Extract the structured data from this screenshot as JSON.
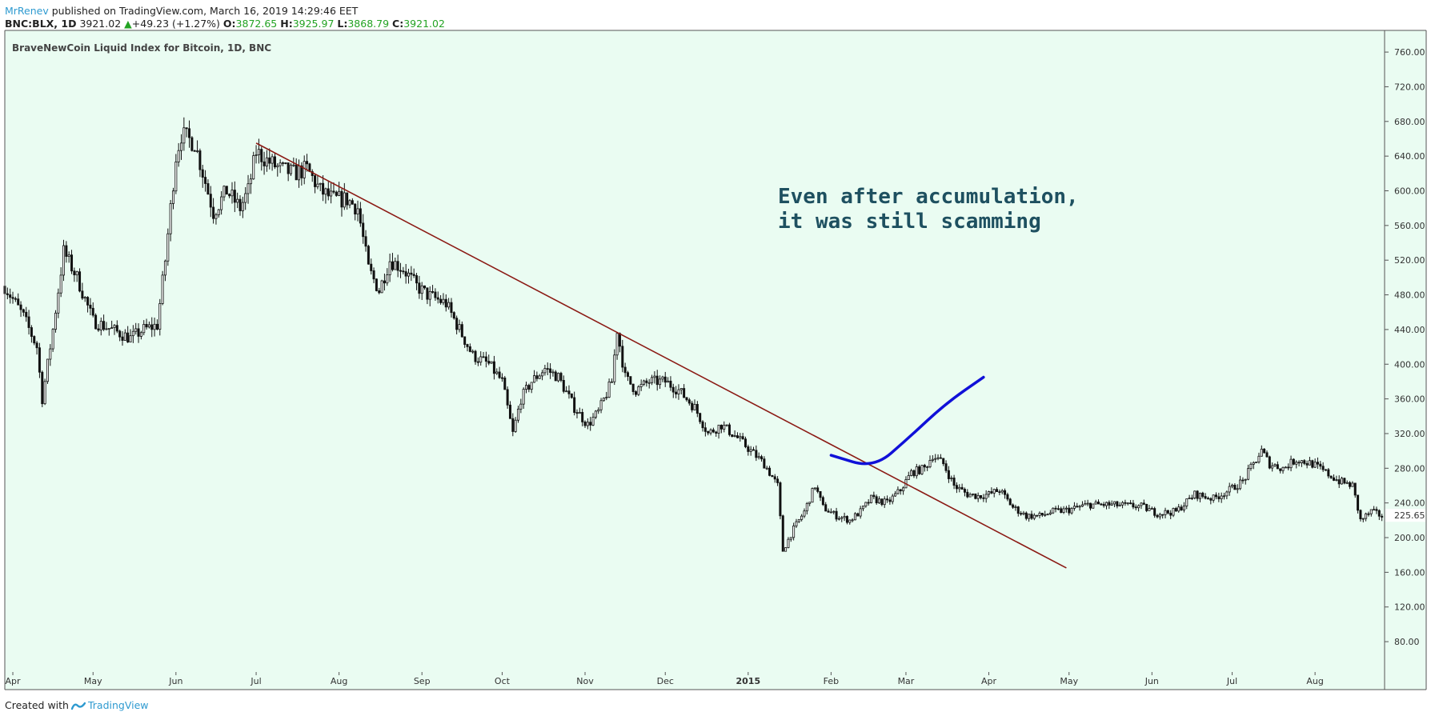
{
  "header": {
    "author": "MrRenev",
    "published_text": "published on TradingView.com, March 16, 2019 14:29:46 EET",
    "symbol": "BNC:BLX, 1D",
    "last": "3921.02",
    "change_arrow": "▲",
    "change": "+49.23 (+1.27%)",
    "open_label": "O:",
    "open": "3872.65",
    "high_label": "H:",
    "high": "3925.97",
    "low_label": "L:",
    "low": "3868.79",
    "close_label": "C:",
    "close": "3921.02"
  },
  "footer": {
    "created_with": "Created with",
    "brand": "TradingView"
  },
  "colors": {
    "background": "#eafcf2",
    "trendline": "#8b1a14",
    "annotation_curve": "#1010d8",
    "annotation_text": "#1e5060",
    "candle": "#111111",
    "price_label_bg": "#ffffff"
  },
  "chart_data": {
    "type": "candlestick",
    "title": "BraveNewCoin Liquid Index for Bitcoin, 1D, BNC",
    "x_tick_labels": [
      "Apr",
      "May",
      "Jun",
      "Jul",
      "Aug",
      "Sep",
      "Oct",
      "Nov",
      "Dec",
      "2015",
      "Feb",
      "Mar",
      "Apr",
      "May",
      "Jun",
      "Jul",
      "Aug"
    ],
    "x_tick_dates": [
      "2014-04-01",
      "2014-05-01",
      "2014-06-01",
      "2014-07-01",
      "2014-08-01",
      "2014-09-01",
      "2014-10-01",
      "2014-11-01",
      "2014-12-01",
      "2015-01-01",
      "2015-02-01",
      "2015-03-01",
      "2015-04-01",
      "2015-05-01",
      "2015-06-01",
      "2015-07-01",
      "2015-08-01"
    ],
    "y_ticks": [
      "80.00",
      "120.00",
      "160.00",
      "200.00",
      "240.00",
      "280.00",
      "320.00",
      "360.00",
      "400.00",
      "440.00",
      "480.00",
      "520.00",
      "560.00",
      "600.00",
      "640.00",
      "680.00",
      "720.00",
      "760.00"
    ],
    "ylim": [
      45,
      785
    ],
    "xlim": [
      "2014-03-29",
      "2015-08-27"
    ],
    "last_price_label": "225.65",
    "price_path": [
      [
        "2014-03-29",
        490
      ],
      [
        "2014-04-05",
        455
      ],
      [
        "2014-04-10",
        420
      ],
      [
        "2014-04-12",
        360
      ],
      [
        "2014-04-16",
        440
      ],
      [
        "2014-04-20",
        530
      ],
      [
        "2014-04-25",
        500
      ],
      [
        "2014-05-01",
        450
      ],
      [
        "2014-05-08",
        440
      ],
      [
        "2014-05-15",
        430
      ],
      [
        "2014-05-20",
        440
      ],
      [
        "2014-05-25",
        445
      ],
      [
        "2014-05-28",
        520
      ],
      [
        "2014-06-01",
        640
      ],
      [
        "2014-06-03",
        665
      ],
      [
        "2014-06-08",
        655
      ],
      [
        "2014-06-12",
        610
      ],
      [
        "2014-06-15",
        575
      ],
      [
        "2014-06-20",
        600
      ],
      [
        "2014-06-25",
        580
      ],
      [
        "2014-06-28",
        600
      ],
      [
        "2014-07-01",
        645
      ],
      [
        "2014-07-05",
        635
      ],
      [
        "2014-07-10",
        625
      ],
      [
        "2014-07-15",
        620
      ],
      [
        "2014-07-20",
        625
      ],
      [
        "2014-07-25",
        600
      ],
      [
        "2014-07-30",
        590
      ],
      [
        "2014-08-04",
        590
      ],
      [
        "2014-08-08",
        580
      ],
      [
        "2014-08-12",
        510
      ],
      [
        "2014-08-16",
        485
      ],
      [
        "2014-08-20",
        520
      ],
      [
        "2014-08-25",
        510
      ],
      [
        "2014-08-30",
        490
      ],
      [
        "2014-09-03",
        480
      ],
      [
        "2014-09-10",
        470
      ],
      [
        "2014-09-15",
        440
      ],
      [
        "2014-09-20",
        410
      ],
      [
        "2014-09-26",
        400
      ],
      [
        "2014-10-01",
        380
      ],
      [
        "2014-10-05",
        320
      ],
      [
        "2014-10-08",
        360
      ],
      [
        "2014-10-12",
        380
      ],
      [
        "2014-10-17",
        395
      ],
      [
        "2014-10-22",
        385
      ],
      [
        "2014-10-28",
        350
      ],
      [
        "2014-11-02",
        330
      ],
      [
        "2014-11-06",
        345
      ],
      [
        "2014-11-11",
        380
      ],
      [
        "2014-11-13",
        440
      ],
      [
        "2014-11-16",
        385
      ],
      [
        "2014-11-20",
        370
      ],
      [
        "2014-11-25",
        380
      ],
      [
        "2014-12-01",
        380
      ],
      [
        "2014-12-06",
        370
      ],
      [
        "2014-12-12",
        350
      ],
      [
        "2014-12-17",
        320
      ],
      [
        "2014-12-22",
        330
      ],
      [
        "2014-12-28",
        315
      ],
      [
        "2015-01-02",
        300
      ],
      [
        "2015-01-07",
        285
      ],
      [
        "2015-01-12",
        260
      ],
      [
        "2015-01-14",
        185
      ],
      [
        "2015-01-18",
        210
      ],
      [
        "2015-01-22",
        230
      ],
      [
        "2015-01-26",
        260
      ],
      [
        "2015-01-29",
        235
      ],
      [
        "2015-02-03",
        225
      ],
      [
        "2015-02-08",
        220
      ],
      [
        "2015-02-12",
        230
      ],
      [
        "2015-02-16",
        245
      ],
      [
        "2015-02-22",
        240
      ],
      [
        "2015-02-27",
        255
      ],
      [
        "2015-03-03",
        275
      ],
      [
        "2015-03-08",
        280
      ],
      [
        "2015-03-11",
        295
      ],
      [
        "2015-03-15",
        285
      ],
      [
        "2015-03-19",
        260
      ],
      [
        "2015-03-24",
        250
      ],
      [
        "2015-03-28",
        248
      ],
      [
        "2015-04-01",
        250
      ],
      [
        "2015-04-05",
        255
      ],
      [
        "2015-04-10",
        235
      ],
      [
        "2015-04-15",
        225
      ],
      [
        "2015-04-20",
        225
      ],
      [
        "2015-04-25",
        230
      ],
      [
        "2015-05-01",
        232
      ],
      [
        "2015-05-08",
        238
      ],
      [
        "2015-05-15",
        238
      ],
      [
        "2015-05-22",
        237
      ],
      [
        "2015-05-28",
        236
      ],
      [
        "2015-06-03",
        228
      ],
      [
        "2015-06-10",
        230
      ],
      [
        "2015-06-17",
        250
      ],
      [
        "2015-06-24",
        245
      ],
      [
        "2015-06-30",
        255
      ],
      [
        "2015-07-05",
        265
      ],
      [
        "2015-07-10",
        290
      ],
      [
        "2015-07-12",
        300
      ],
      [
        "2015-07-15",
        285
      ],
      [
        "2015-07-20",
        280
      ],
      [
        "2015-07-25",
        290
      ],
      [
        "2015-07-31",
        285
      ],
      [
        "2015-08-05",
        275
      ],
      [
        "2015-08-10",
        265
      ],
      [
        "2015-08-15",
        260
      ],
      [
        "2015-08-18",
        220
      ],
      [
        "2015-08-22",
        230
      ],
      [
        "2015-08-26",
        225
      ]
    ],
    "trendline": [
      [
        "2014-07-01",
        655
      ],
      [
        "2015-04-30",
        165
      ]
    ],
    "annotations": [
      {
        "text": "Even after accumulation,"
      },
      {
        "text": "it was still scamming"
      }
    ],
    "annotation_curve": [
      [
        "2015-02-01",
        295
      ],
      [
        "2015-02-17",
        280
      ],
      [
        "2015-03-02",
        315
      ],
      [
        "2015-03-16",
        355
      ],
      [
        "2015-03-30",
        385
      ]
    ]
  }
}
